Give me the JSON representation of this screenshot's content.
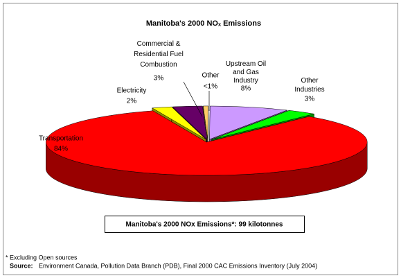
{
  "chart_data": {
    "type": "pie3d",
    "title": "Manitoba's 2000 NOₓ Emissions",
    "categories": [
      "Transportation",
      "Electricity",
      "Commercial &\nResidential Fuel\nCombustion",
      "Other",
      "Upstream Oil\nand Gas\nIndustry",
      "Other\nIndustries"
    ],
    "values": [
      84,
      2,
      3,
      0.5,
      8,
      3
    ],
    "value_labels": [
      "84%",
      "2%",
      "3%",
      "<1%",
      "8%",
      "3%"
    ],
    "colors": [
      "#ff0000",
      "#ffff00",
      "#660066",
      "#ffcc66",
      "#cc99ff",
      "#00ff00"
    ],
    "summary": "Manitoba's 2000 NOx Emissions*:  99 kilotonnes",
    "footnote": "*  Excluding Open sources",
    "source_label": "Source:",
    "source": "Environment Canada, Pollution Data Branch (PDB), Final 2000 CAC Emissions Inventory (July 2004)"
  }
}
